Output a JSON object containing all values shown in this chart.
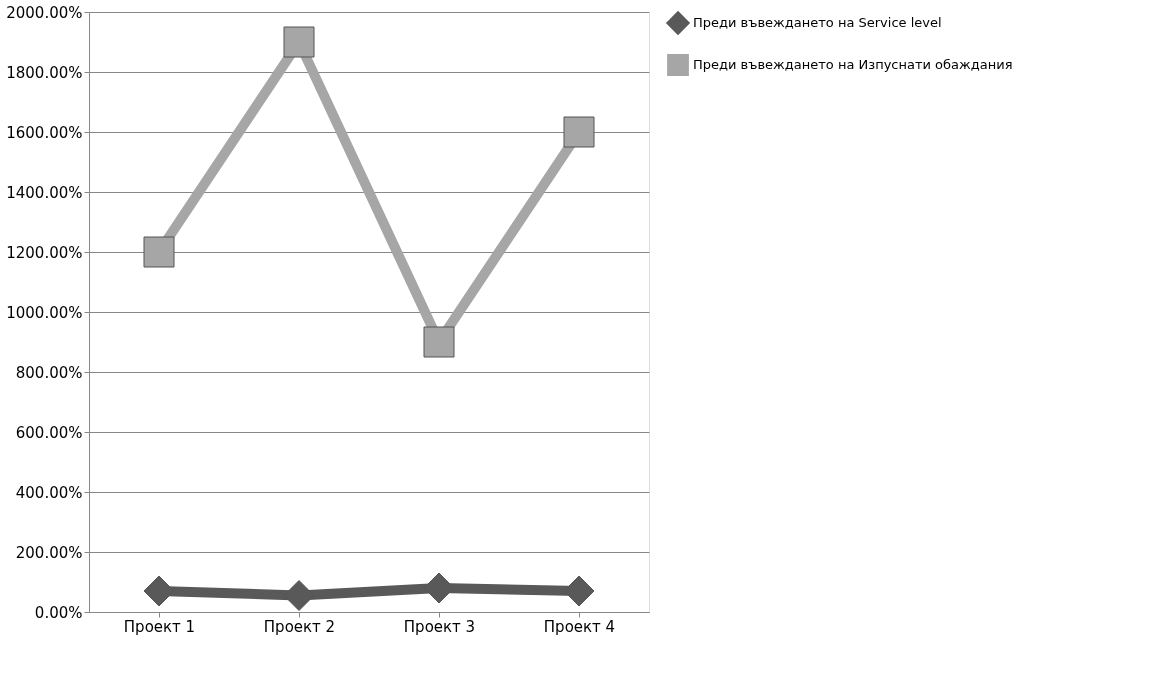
{
  "chart_data": {
    "type": "line",
    "categories": [
      "Проект 1",
      "Проект 2",
      "Проект 3",
      "Проект 4"
    ],
    "series": [
      {
        "name": "Преди въвеждането на Service level",
        "color": "#595959",
        "marker": "diamond",
        "values": [
          70,
          55,
          80,
          70
        ]
      },
      {
        "name": "Преди въвеждането на Изпуснати обаждания",
        "color": "#a6a6a6",
        "marker": "square",
        "values": [
          1200,
          1900,
          900,
          1600
        ]
      }
    ],
    "ylim": [
      0,
      2000
    ],
    "yticks": [
      {
        "value": 0,
        "label": "0.00%"
      },
      {
        "value": 200,
        "label": "200.00%"
      },
      {
        "value": 400,
        "label": "400.00%"
      },
      {
        "value": 600,
        "label": "600.00%"
      },
      {
        "value": 800,
        "label": "800.00%"
      },
      {
        "value": 1000,
        "label": "1000.00%"
      },
      {
        "value": 1200,
        "label": "1200.00%"
      },
      {
        "value": 1400,
        "label": "1400.00%"
      },
      {
        "value": 1600,
        "label": "1600.00%"
      },
      {
        "value": 1800,
        "label": "1800.00%"
      },
      {
        "value": 2000,
        "label": "2000.00%"
      }
    ],
    "grid": "y",
    "legend": "right",
    "line_style": "solid"
  }
}
